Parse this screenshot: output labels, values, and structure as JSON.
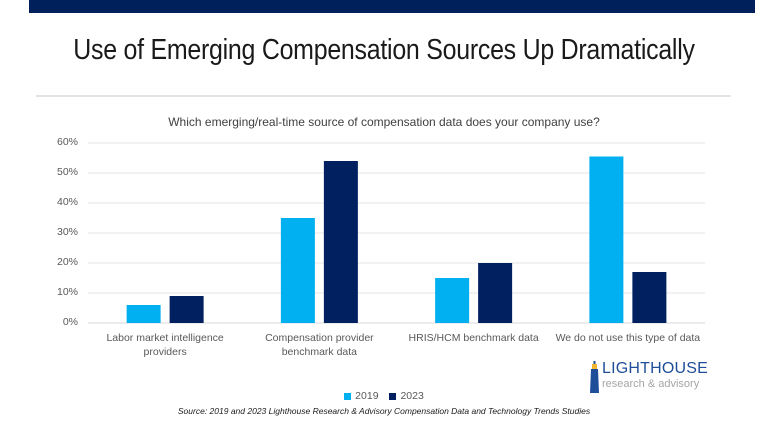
{
  "slide": {
    "title": "Use of Emerging Compensation Sources Up Dramatically",
    "source": "Source: 2019 and 2023 Lighthouse Research & Advisory  Compensation Data and Technology Trends Studies",
    "logo": {
      "name": "LIGHTHOUSE",
      "tagline": "research & advisory"
    },
    "colors": {
      "header_bar": "#00205b",
      "series_2019": "#00b0f0",
      "series_2023": "#002060"
    }
  },
  "chart_data": {
    "type": "bar",
    "title": "Which emerging/real-time source of compensation data does your company use?",
    "xlabel": "",
    "ylabel": "",
    "categories": [
      "Labor market intelligence providers",
      "Compensation provider benchmark data",
      "HRIS/HCM benchmark data",
      "We do not use this type of data"
    ],
    "category_lines": [
      [
        "Labor market intelligence",
        "providers"
      ],
      [
        "Compensation provider",
        "benchmark data"
      ],
      [
        "HRIS/HCM benchmark data"
      ],
      [
        "We do not use this type of data"
      ]
    ],
    "series": [
      {
        "name": "2019",
        "color": "#00b0f0",
        "values": [
          6,
          35,
          15,
          55.5
        ]
      },
      {
        "name": "2023",
        "color": "#002060",
        "values": [
          9,
          54,
          20,
          17
        ]
      }
    ],
    "ylim": [
      0,
      60
    ],
    "yticks": [
      0,
      10,
      20,
      30,
      40,
      50,
      60
    ],
    "ytick_labels": [
      "0%",
      "10%",
      "20%",
      "30%",
      "40%",
      "50%",
      "60%"
    ],
    "grid": true,
    "legend_position": "bottom"
  }
}
